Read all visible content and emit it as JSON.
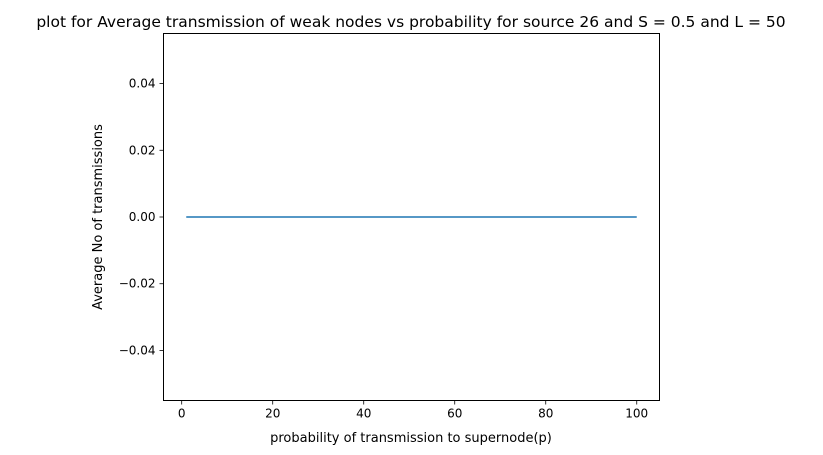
{
  "chart_data": {
    "type": "line",
    "title": "plot for Average transmission of weak nodes vs probability for source 26 and S = 0.5 and L = 50",
    "xlabel": "probability of transmission to supernode(p)",
    "ylabel": "Average No of transmissions",
    "xlim": [
      -4,
      105
    ],
    "ylim": [
      -0.055,
      0.055
    ],
    "xticks": [
      0,
      20,
      40,
      60,
      80,
      100
    ],
    "xtick_labels": [
      "0",
      "20",
      "40",
      "60",
      "80",
      "100"
    ],
    "yticks": [
      -0.04,
      -0.02,
      0.0,
      0.02,
      0.04
    ],
    "ytick_labels": [
      "−0.04",
      "−0.02",
      "0.00",
      "0.02",
      "0.04"
    ],
    "grid": false,
    "series": [
      {
        "x": [
          1,
          100
        ],
        "y": [
          0,
          0
        ],
        "color": "#1f77b4"
      }
    ]
  }
}
